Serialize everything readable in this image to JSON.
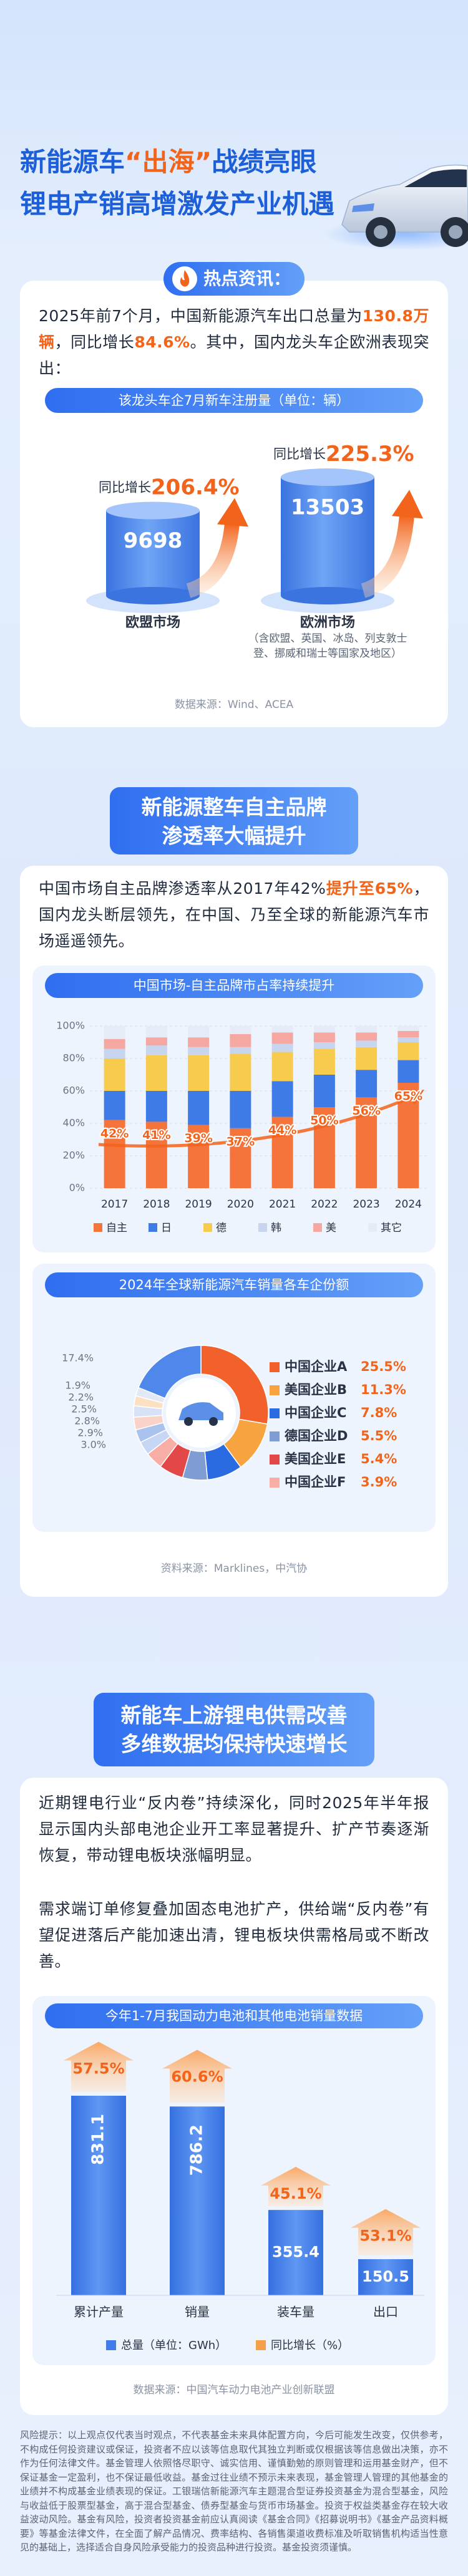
{
  "header": {
    "title_line1": [
      "新能源车",
      "“出海”",
      "战绩亮眼"
    ],
    "title_line2": "锂电产销高增激发产业机遇"
  },
  "hot_news": {
    "label": "热点资讯："
  },
  "section1": {
    "text": [
      "2025年前7个月，中国新能源汽车出口总量为",
      "130.8万辆",
      "，同比增长",
      "84.6%",
      "。其中，国内龙头车企欧洲表现突出："
    ],
    "source": "数据来源：Wind、ACEA"
  },
  "section2": {
    "heading": [
      "新能源整车自主品牌",
      "渗透率大幅提升"
    ],
    "text": [
      "中国市场自主品牌渗透率从2017年42%",
      "提升至65%",
      "，国内龙头断层领先，在中国、乃至全球的新能源汽车市场遥遥领先。"
    ],
    "source": "资料来源：Marklines，中汽协"
  },
  "section3": {
    "heading": [
      "新能车上游锂电供需改善",
      "多维数据均保持快速增长"
    ],
    "paragraphs": [
      "近期锂电行业“反内卷”持续深化，同时2025年半年报显示国内头部电池企业开工率显著提升、扩产节奏逐渐恢复，带动锂电板块涨幅明显。",
      "需求端订单修复叠加固态电池扩产，供给端“反内卷”有望促进落后产能加速出清，锂电板块供需格局或不断改善。"
    ],
    "source": "数据来源：中国汽车动力电池产业创新联盟"
  },
  "risk_notice": "风险提示：以上观点仅代表当时观点，不代表基金未来具体配置方向，今后可能发生改变，仅供参考，不构成任何投资建议或保证，投资者不应以该等信息取代其独立判断或仅根据该等信息做出决策，亦不作为任何法律文件。基金管理人依照恪尽职守、诚实信用、谨慎勤勉的原则管理和运用基金财产，但不保证基金一定盈利，也不保证最低收益。基金过往业绩不预示未来表现，基金管理人管理的其他基金的业绩并不构成基金业绩表现的保证。工银瑞信新能源汽车主题混合型证券投资基金为混合型基金，风险与收益低于股票型基金，高于混合型基金、债券型基金与货币市场基金。投资于权益类基金存在较大收益波动风险。基金有风险，投资者投资基金前应认真阅读《基金合同》《招募说明书》《基金产品资料概要》等基金法律文件，在全面了解产品情况、费率结构、各销售渠道收费标准及听取销售机构适当性意见的基础上，选择适合自身风险承受能力的投资品种进行投资。基金投资须谨慎。",
  "chart_data": [
    {
      "type": "cylinder",
      "title": "该龙头车企7月新车注册量（单位：辆）",
      "categories": [
        "欧盟市场",
        "欧洲市场"
      ],
      "values": [
        9698,
        13503
      ],
      "color": "#3f7de9",
      "growth_label": "同比增长",
      "growth": [
        206.4,
        225.3
      ],
      "growth_value_labels": [
        "206.4%",
        "225.3%"
      ],
      "annotation": "（含欧盟、英国、冰岛、列支敦士登、挪威和瑞士等国家及地区）"
    },
    {
      "type": "stacked_bar",
      "title": "中国市场-自主品牌市占率持续提升",
      "categories": [
        "2017",
        "2018",
        "2019",
        "2020",
        "2021",
        "2022",
        "2023",
        "2024"
      ],
      "series": [
        {
          "name": "自主",
          "color": "#f4743b",
          "values": [
            42,
            41,
            39,
            37,
            44,
            50,
            56,
            65
          ],
          "value_labels": [
            "42%",
            "41%",
            "39%",
            "37%",
            "44%",
            "50%",
            "56%",
            "65%"
          ]
        },
        {
          "name": "日",
          "color": "#3e7be6",
          "values": [
            18,
            19,
            21,
            23,
            22,
            20,
            17,
            14
          ]
        },
        {
          "name": "德",
          "color": "#f7cb4d",
          "values": [
            20,
            22,
            22,
            23,
            18,
            16,
            14,
            11
          ]
        },
        {
          "name": "韩",
          "color": "#c7d5ef",
          "values": [
            6,
            6,
            5,
            4,
            5,
            4,
            4,
            3
          ]
        },
        {
          "name": "美",
          "color": "#f5a7a1",
          "values": [
            6,
            5,
            6,
            8,
            7,
            6,
            5,
            4
          ]
        },
        {
          "name": "其它",
          "color": "#e6ecf7",
          "values": [
            8,
            7,
            7,
            5,
            4,
            4,
            4,
            3
          ]
        }
      ],
      "ylim": [
        0,
        100
      ],
      "yticks": [
        {
          "value": 0,
          "label": "0%"
        },
        {
          "value": 20,
          "label": "20%"
        },
        {
          "value": 40,
          "label": "40%"
        },
        {
          "value": 60,
          "label": "60%"
        },
        {
          "value": 80,
          "label": "80%"
        },
        {
          "value": 100,
          "label": "100%"
        }
      ],
      "grid": true
    },
    {
      "type": "donut",
      "title": "2024年全球新能源汽车销量各车企份额",
      "categories": [
        "中国企业A",
        "美国企业B",
        "中国企业C",
        "德国企业D",
        "美国企业E",
        "中国企业F",
        null,
        null,
        null,
        null,
        null,
        null,
        null
      ],
      "values": [
        25.5,
        11.3,
        7.8,
        5.5,
        5.4,
        3.9,
        3.0,
        2.9,
        2.8,
        2.5,
        2.2,
        1.9,
        17.4
      ],
      "value_labels": [
        "25.5%",
        "11.3%",
        "7.8%",
        "5.5%",
        "5.4%",
        "3.9%",
        "3.0%",
        "2.9%",
        "2.8%",
        "2.5%",
        "2.2%",
        "1.9%",
        "17.4%"
      ],
      "colors": [
        "#f2612b",
        "#f7a33f",
        "#2b6be2",
        "#7f9cd3",
        "#e34848",
        "#f7aea4",
        "#c6d7f6",
        "#a9c3ee",
        "#f9d3c8",
        "#d7e2f6",
        "#fbe1c2",
        "#e3e9f4",
        "#4f88ea"
      ]
    },
    {
      "type": "bar",
      "title": "今年1-7月我国动力电池和其他电池销量数据",
      "categories": [
        "累计产量",
        "销量",
        "装车量",
        "出口"
      ],
      "series": [
        {
          "name": "总量（单位：GWh）",
          "color": "#3f7de9",
          "values": [
            831.1,
            786.2,
            355.4,
            150.5
          ]
        },
        {
          "name": "同比增长（%）",
          "color": "#f7a04a",
          "values": [
            57.5,
            60.6,
            45.1,
            53.1
          ],
          "value_labels": [
            "57.5%",
            "60.6%",
            "45.1%",
            "53.1%"
          ]
        }
      ]
    }
  ]
}
